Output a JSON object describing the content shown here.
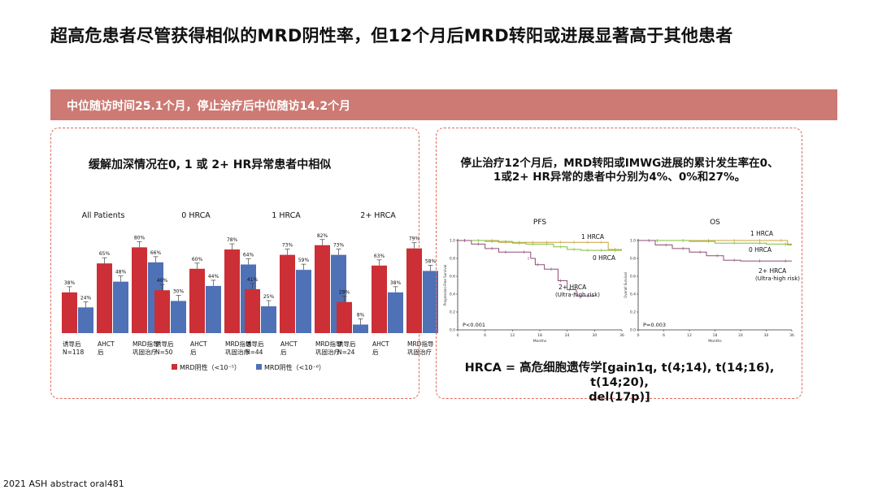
{
  "slide": {
    "title": "超高危患者尽管获得相似的MRD阴性率，但12个月后MRD转阳或进展显著高于其他患者",
    "banner": "中位随访时间25.1个月，停止治疗后中位随访14.2个月",
    "left_title": "缓解加深情况在0, 1 或 2+ HR异常患者中相似",
    "right_title_line1": "停止治疗12个月后，MRD转阳或IMWG进展的累计发生率在0、",
    "right_title_line2": "1或2+ HR异常的患者中分别为4%、0%和27%。",
    "hrca_def_line1": "HRCA = 高危细胞遗传学[gain1q, t(4;14), t(14;16), t(14;20),",
    "hrca_def_line2": "del(17p)]",
    "footer": "2021 ASH abstract oral481",
    "colors": {
      "banner": "#cc7a73",
      "panel_border": "#e0695c"
    }
  },
  "chart_data": [
    {
      "type": "bar",
      "categories": [
        "诱导后",
        "AHCT后",
        "MRD指导巩固治疗"
      ],
      "groups": [
        {
          "title": "All Patients",
          "n_label": "N=118",
          "mrd5": [
            38,
            65,
            80
          ],
          "mrd6": [
            24,
            48,
            66
          ]
        },
        {
          "title": "0 HRCA",
          "n_label": "N=50",
          "mrd5": [
            40,
            60,
            78
          ],
          "mrd6": [
            30,
            44,
            64
          ]
        },
        {
          "title": "1 HRCA",
          "n_label": "N=44",
          "mrd5": [
            41,
            73,
            82
          ],
          "mrd6": [
            25,
            59,
            73
          ]
        },
        {
          "title": "2+ HRCA",
          "n_label": "N=24",
          "mrd5": [
            29,
            63,
            79
          ],
          "mrd6": [
            8,
            38,
            58
          ]
        }
      ],
      "category_labels": [
        [
          "诱导后"
        ],
        [
          "AHCT",
          "后"
        ],
        [
          "MRD指导",
          "巩固治疗"
        ]
      ],
      "series": [
        {
          "name": "MRD阴性（<10⁻⁵）",
          "color": "#cc2f35"
        },
        {
          "name": "MRD阴性（<10⁻⁶）",
          "color": "#4f71b6"
        }
      ],
      "ylim": [
        0,
        100
      ]
    },
    {
      "type": "line",
      "title": "PFS",
      "ylabel": "Progression-Free Survival",
      "xlabel": "Months",
      "xlim": [
        0,
        36
      ],
      "x_ticks": [
        "0",
        "6",
        "12",
        "18",
        "24",
        "30",
        "36"
      ],
      "ylim": [
        0,
        1
      ],
      "y_ticks": [
        "0.0",
        "0.2",
        "0.4",
        "0.6",
        "0.8",
        "1.0"
      ],
      "p_value": "P<0.001",
      "series": [
        {
          "name": "1 HRCA",
          "color": "#c8a43a",
          "x": [
            0,
            3,
            6,
            9,
            12,
            15,
            18,
            21,
            24,
            27,
            30,
            33,
            36
          ],
          "y": [
            1.0,
            1.0,
            1.0,
            0.98,
            0.98,
            0.98,
            0.98,
            0.98,
            0.98,
            0.98,
            0.98,
            0.9,
            0.9
          ]
        },
        {
          "name": "0 HRCA",
          "color": "#7fbe3a",
          "x": [
            0,
            3,
            6,
            9,
            12,
            15,
            18,
            21,
            24,
            27,
            30,
            33,
            36
          ],
          "y": [
            1.0,
            1.0,
            0.99,
            0.99,
            0.97,
            0.96,
            0.96,
            0.93,
            0.9,
            0.89,
            0.89,
            0.89,
            0.89
          ]
        },
        {
          "name": "2+ HRCA",
          "color": "#8e4d77",
          "sublabel": "(Ultra-high risk)",
          "x": [
            0,
            3,
            6,
            9,
            12,
            16,
            17,
            19,
            22,
            24,
            26,
            27,
            30
          ],
          "y": [
            1.0,
            0.96,
            0.91,
            0.87,
            0.87,
            0.8,
            0.73,
            0.68,
            0.55,
            0.45,
            0.38,
            0.38,
            0.38
          ]
        }
      ]
    },
    {
      "type": "line",
      "title": "OS",
      "ylabel": "Overall Survival",
      "xlabel": "Months",
      "xlim": [
        0,
        36
      ],
      "x_ticks": [
        "0",
        "6",
        "12",
        "18",
        "24",
        "30",
        "36"
      ],
      "ylim": [
        0,
        1
      ],
      "y_ticks": [
        "0.0",
        "0.2",
        "0.4",
        "0.6",
        "0.8",
        "1.0"
      ],
      "p_value": "P=0.003",
      "series": [
        {
          "name": "1 HRCA",
          "color": "#c8a43a",
          "x": [
            0,
            6,
            12,
            18,
            24,
            30,
            35,
            36
          ],
          "y": [
            1.0,
            1.0,
            1.0,
            1.0,
            1.0,
            1.0,
            0.95,
            0.95
          ]
        },
        {
          "name": "0 HRCA",
          "color": "#7fbe3a",
          "x": [
            0,
            6,
            12,
            18,
            24,
            30,
            36
          ],
          "y": [
            1.0,
            1.0,
            0.99,
            0.97,
            0.97,
            0.96,
            0.96
          ]
        },
        {
          "name": "2+ HRCA",
          "color": "#8e4d77",
          "sublabel": "(Ultra-high risk)",
          "x": [
            0,
            4,
            8,
            12,
            16,
            20,
            24,
            30,
            36
          ],
          "y": [
            1.0,
            0.95,
            0.91,
            0.87,
            0.83,
            0.78,
            0.77,
            0.77,
            0.77
          ]
        }
      ]
    }
  ]
}
